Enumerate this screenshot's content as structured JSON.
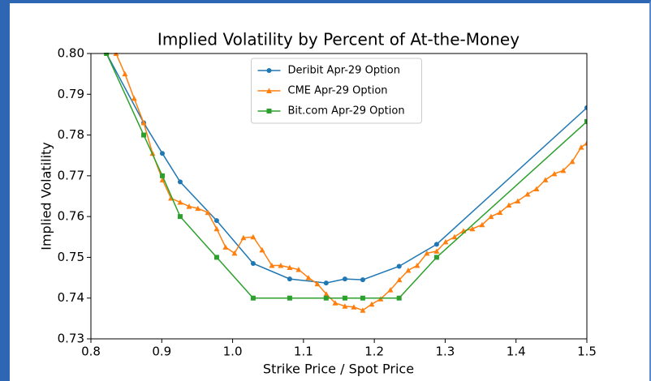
{
  "chart_data": {
    "type": "line",
    "title": "Implied Volatility by Percent of At-the-Money",
    "xlabel": "Strike Price / Spot Price",
    "ylabel": "Implied Volatility",
    "xlim": [
      0.8,
      1.5
    ],
    "ylim": [
      0.73,
      0.8
    ],
    "xticks": [
      0.8,
      0.9,
      {
        "value": 1.0,
        "label": "1.0"
      },
      1.1,
      1.2,
      1.3,
      1.4,
      1.5
    ],
    "yticks": [
      0.73,
      0.74,
      0.75,
      0.76,
      0.77,
      0.78,
      0.79,
      {
        "value": 0.8,
        "label": "0.80"
      }
    ],
    "grid": false,
    "legend": "upper center",
    "series": [
      {
        "name": "Deribit Apr-29 Option",
        "color": "#1f77b4",
        "marker": "circle",
        "x": [
          0.822,
          0.8745,
          0.9008,
          0.926,
          0.9775,
          1.029,
          1.0806,
          1.132,
          1.1585,
          1.1837,
          1.235,
          1.288,
          1.5
        ],
        "values": [
          0.8,
          0.783,
          0.7755,
          0.7685,
          0.759,
          0.7485,
          0.7447,
          0.7437,
          0.7447,
          0.7445,
          0.7478,
          0.7532,
          0.7867
        ]
      },
      {
        "name": "CME Apr-29 Option",
        "color": "#ff7f0e",
        "marker": "triangle",
        "x": [
          0.8355,
          0.848,
          0.861,
          0.8745,
          0.887,
          0.901,
          0.913,
          0.926,
          0.9386,
          0.951,
          0.965,
          0.9775,
          0.99,
          1.0027,
          1.0153,
          1.029,
          1.0417,
          1.0554,
          1.068,
          1.0806,
          1.0932,
          1.107,
          1.1196,
          1.1322,
          1.1448,
          1.1585,
          1.1711,
          1.1837,
          1.1963,
          1.2089,
          1.2227,
          1.2353,
          1.2479,
          1.2605,
          1.2742,
          1.288,
          1.3006,
          1.3132,
          1.3258,
          1.3384,
          1.3521,
          1.3647,
          1.3773,
          1.3899,
          1.4025,
          1.4163,
          1.4289,
          1.4415,
          1.4541,
          1.4667,
          1.4794,
          1.492,
          1.5
        ],
        "values": [
          0.8,
          0.795,
          0.789,
          0.783,
          0.7755,
          0.769,
          0.7645,
          0.7635,
          0.7625,
          0.762,
          0.761,
          0.757,
          0.7525,
          0.751,
          0.7548,
          0.755,
          0.7518,
          0.748,
          0.748,
          0.7475,
          0.747,
          0.745,
          0.7435,
          0.741,
          0.7388,
          0.738,
          0.7378,
          0.737,
          0.7385,
          0.7398,
          0.742,
          0.7445,
          0.7468,
          0.748,
          0.751,
          0.7515,
          0.7538,
          0.755,
          0.7565,
          0.757,
          0.758,
          0.76,
          0.761,
          0.7628,
          0.7638,
          0.7655,
          0.7668,
          0.769,
          0.7705,
          0.7713,
          0.7735,
          0.777,
          0.778
        ]
      },
      {
        "name": "Bit.com Apr-29 Option",
        "color": "#2ca02c",
        "marker": "square",
        "x": [
          0.822,
          0.8745,
          0.9008,
          0.926,
          0.9775,
          1.029,
          1.0806,
          1.132,
          1.1585,
          1.1837,
          1.235,
          1.288,
          1.5
        ],
        "values": [
          0.8,
          0.78,
          0.77,
          0.76,
          0.75,
          0.74,
          0.74,
          0.74,
          0.74,
          0.74,
          0.74,
          0.75,
          0.7833
        ]
      }
    ]
  }
}
